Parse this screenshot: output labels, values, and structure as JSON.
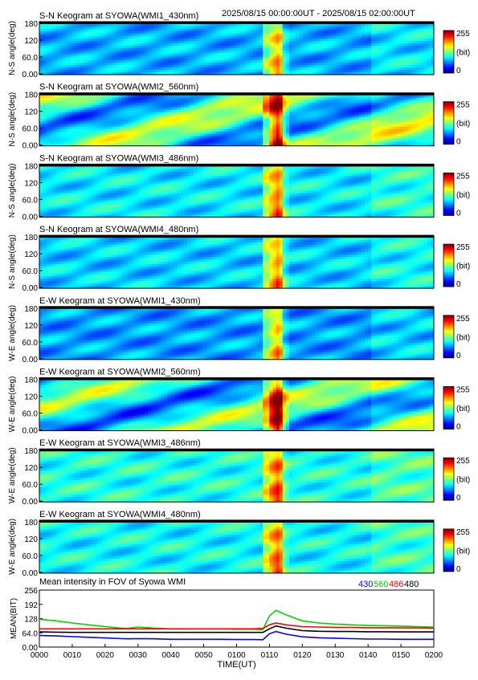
{
  "header": {
    "time_range": "2025/08/15 00:00:00UT - 2025/08/15 02:00:00UT"
  },
  "chart_data": [
    {
      "type": "heatmap",
      "title": "S-N Keogram at SYOWA(WMI1_430nm)",
      "ylabel": "N-S angle(deg)",
      "yticks": [
        "0.00",
        "60.0",
        "120",
        "180"
      ],
      "ylim": [
        0,
        180
      ],
      "colorbar": {
        "min": "0",
        "max": "255",
        "unit": "(bit)"
      },
      "grid": false
    },
    {
      "type": "heatmap",
      "title": "S-N Keogram at SYOWA(WMI2_560nm)",
      "ylabel": "N-S angle(deg)",
      "yticks": [
        "0.00",
        "60.0",
        "120",
        "180"
      ],
      "ylim": [
        0,
        180
      ],
      "colorbar": {
        "min": "0",
        "max": "255",
        "unit": "(bit)"
      },
      "grid": false
    },
    {
      "type": "heatmap",
      "title": "S-N Keogram at SYOWA(WMI3_486nm)",
      "ylabel": "N-S angle(deg)",
      "yticks": [
        "0.00",
        "60.0",
        "120",
        "180"
      ],
      "ylim": [
        0,
        180
      ],
      "colorbar": {
        "min": "0",
        "max": "255",
        "unit": "(bit)"
      },
      "grid": false
    },
    {
      "type": "heatmap",
      "title": "S-N Keogram at SYOWA(WMI4_480nm)",
      "ylabel": "N-S angle(deg)",
      "yticks": [
        "0.00",
        "60.0",
        "120",
        "180"
      ],
      "ylim": [
        0,
        180
      ],
      "colorbar": {
        "min": "0",
        "max": "255",
        "unit": "(bit)"
      },
      "grid": false
    },
    {
      "type": "heatmap",
      "title": "E-W Keogram at SYOWA(WMI1_430nm)",
      "ylabel": "W-E angle(deg)",
      "yticks": [
        "0.00",
        "60.0",
        "120",
        "180"
      ],
      "ylim": [
        0,
        180
      ],
      "colorbar": {
        "min": "0",
        "max": "255",
        "unit": "(bit)"
      },
      "grid": false
    },
    {
      "type": "heatmap",
      "title": "E-W Keogram at SYOWA(WMI2_560nm)",
      "ylabel": "W-E angle(deg)",
      "yticks": [
        "0.00",
        "60.0",
        "120",
        "180"
      ],
      "ylim": [
        0,
        180
      ],
      "colorbar": {
        "min": "0",
        "max": "255",
        "unit": "(bit)"
      },
      "grid": false
    },
    {
      "type": "heatmap",
      "title": "E-W Keogram at SYOWA(WMI3_486nm)",
      "ylabel": "W-E angle(deg)",
      "yticks": [
        "0.00",
        "60.0",
        "120",
        "180"
      ],
      "ylim": [
        0,
        180
      ],
      "colorbar": {
        "min": "0",
        "max": "255",
        "unit": "(bit)"
      },
      "grid": false
    },
    {
      "type": "heatmap",
      "title": "E-W Keogram at SYOWA(WMI4_480nm)",
      "ylabel": "W-E angle(deg)",
      "yticks": [
        "0.00",
        "60.0",
        "120",
        "180"
      ],
      "ylim": [
        0,
        180
      ],
      "colorbar": {
        "min": "0",
        "max": "255",
        "unit": "(bit)"
      },
      "grid": false
    },
    {
      "type": "line",
      "title": "Mean intensity in FOV of Syowa WMI",
      "xlabel": "TIME(UT)",
      "ylabel": "MEAN(BIT)",
      "xlim": [
        0,
        120
      ],
      "ylim": [
        0,
        256
      ],
      "x_tick_labels": [
        "0000",
        "0010",
        "0020",
        "0030",
        "0040",
        "0050",
        "0100",
        "0110",
        "0120",
        "0130",
        "0140",
        "0150",
        "0200"
      ],
      "y_tick_labels": [
        "0.00",
        "64.0",
        "128",
        "192",
        "256"
      ],
      "x": [
        0,
        5,
        10,
        15,
        20,
        25,
        27,
        30,
        35,
        40,
        45,
        50,
        55,
        60,
        65,
        68,
        70,
        72,
        75,
        80,
        85,
        90,
        95,
        100,
        105,
        110,
        115,
        120
      ],
      "series": [
        {
          "name": "430",
          "color": "#0000ff",
          "values": [
            52,
            50,
            47,
            44,
            41,
            38,
            37,
            38,
            37,
            35,
            35,
            35,
            35,
            34,
            34,
            33,
            60,
            70,
            58,
            46,
            42,
            40,
            38,
            36,
            36,
            35,
            35,
            35
          ]
        },
        {
          "name": "560",
          "color": "#00d400",
          "values": [
            125,
            118,
            108,
            100,
            92,
            85,
            84,
            90,
            85,
            82,
            81,
            82,
            82,
            80,
            80,
            78,
            140,
            165,
            145,
            118,
            108,
            103,
            100,
            97,
            96,
            94,
            92,
            90
          ]
        },
        {
          "name": "486",
          "color": "#ff0000",
          "values": [
            82,
            82,
            82,
            82,
            82,
            82,
            82,
            82,
            82,
            82,
            82,
            82,
            82,
            82,
            82,
            84,
            100,
            108,
            100,
            92,
            90,
            88,
            88,
            87,
            87,
            86,
            86,
            85
          ]
        },
        {
          "name": "480",
          "color": "#000000",
          "values": [
            68,
            67,
            66,
            66,
            66,
            66,
            66,
            66,
            66,
            66,
            66,
            66,
            66,
            66,
            66,
            66,
            82,
            95,
            85,
            74,
            71,
            70,
            70,
            69,
            69,
            68,
            68,
            68
          ]
        }
      ],
      "grid": false
    }
  ]
}
